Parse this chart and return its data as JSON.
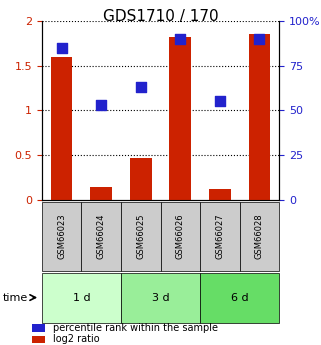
{
  "title": "GDS1710 / 170",
  "samples": [
    "GSM66023",
    "GSM66024",
    "GSM66025",
    "GSM66026",
    "GSM66027",
    "GSM66028"
  ],
  "log2_ratio": [
    1.6,
    0.15,
    0.47,
    1.82,
    0.12,
    1.85
  ],
  "percentile_rank": [
    85,
    53,
    63,
    90,
    55,
    90
  ],
  "groups": [
    {
      "label": "1 d",
      "indices": [
        0,
        1
      ],
      "color": "#ccffcc"
    },
    {
      "label": "3 d",
      "indices": [
        2,
        3
      ],
      "color": "#99ee99"
    },
    {
      "label": "6 d",
      "indices": [
        4,
        5
      ],
      "color": "#66dd66"
    }
  ],
  "bar_color": "#cc2200",
  "dot_color": "#2222cc",
  "ylim_left": [
    0,
    2
  ],
  "ylim_right": [
    0,
    100
  ],
  "yticks_left": [
    0,
    0.5,
    1.0,
    1.5,
    2.0
  ],
  "yticks_right": [
    0,
    25,
    50,
    75,
    100
  ],
  "ytick_labels_left": [
    "0",
    "0.5",
    "1",
    "1.5",
    "2"
  ],
  "ytick_labels_right": [
    "0",
    "25",
    "50",
    "75",
    "100%"
  ],
  "bar_width": 0.55,
  "dot_size": 55,
  "left_tick_color": "#cc2200",
  "right_tick_color": "#2222cc",
  "time_label": "time",
  "legend_items": [
    {
      "label": "log2 ratio",
      "color": "#cc2200"
    },
    {
      "label": "percentile rank within the sample",
      "color": "#2222cc"
    }
  ]
}
